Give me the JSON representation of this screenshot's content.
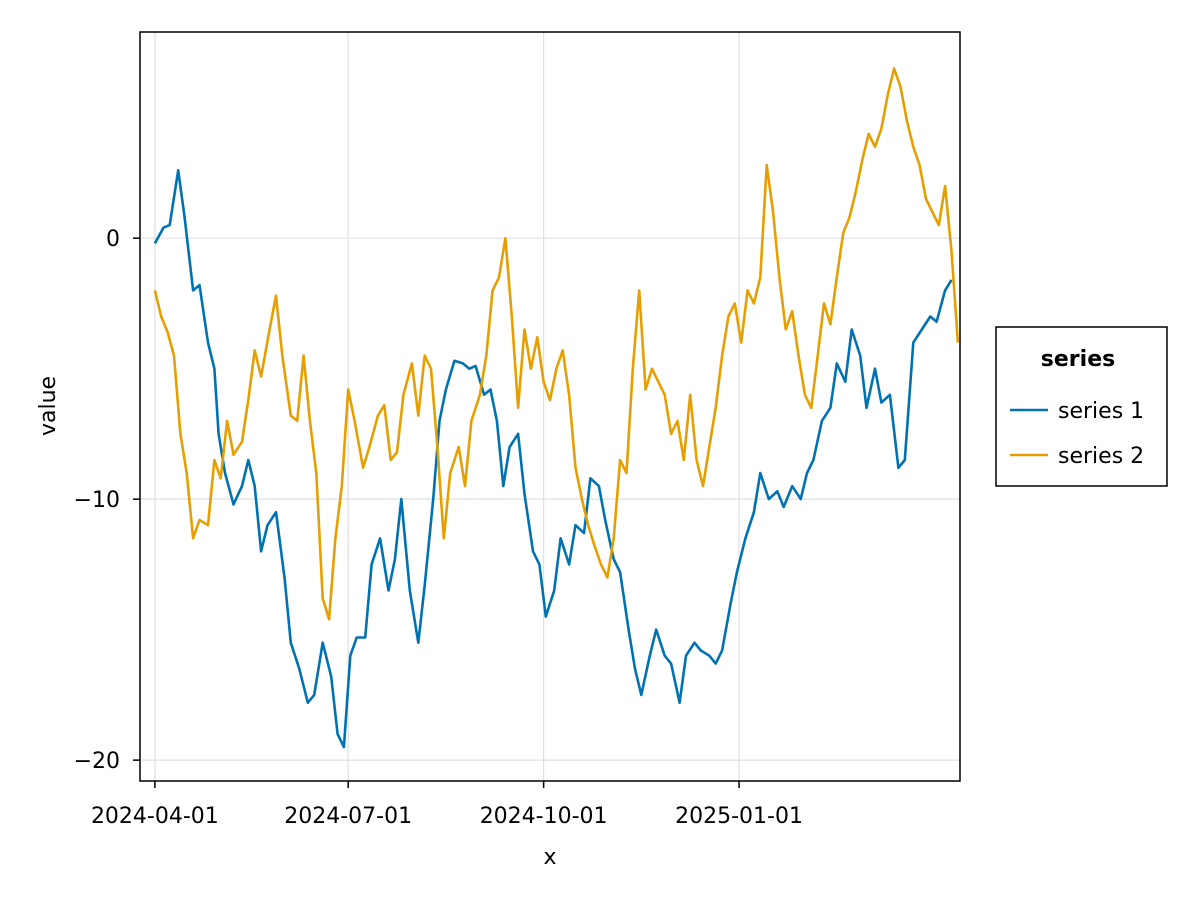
{
  "chart_data": {
    "type": "line",
    "title": "",
    "xlabel": "x",
    "ylabel": "value",
    "x_range": [
      "2024-03-25",
      "2025-04-15"
    ],
    "ylim": [
      -20.8,
      7.9
    ],
    "x_ticks": [
      "2024-04-01",
      "2024-07-01",
      "2024-10-01",
      "2025-01-01"
    ],
    "y_ticks": [
      0,
      -10,
      -20
    ],
    "grid": true,
    "legend": {
      "title": "series",
      "placement": "right"
    },
    "series": [
      {
        "name": "series 1",
        "color": "#0072b2",
        "points": [
          [
            "2024-04-01",
            -0.2
          ],
          [
            "2024-04-05",
            0.4
          ],
          [
            "2024-04-08",
            0.5
          ],
          [
            "2024-04-12",
            2.6
          ],
          [
            "2024-04-15",
            0.8
          ],
          [
            "2024-04-19",
            -2.0
          ],
          [
            "2024-04-22",
            -1.8
          ],
          [
            "2024-04-26",
            -4.0
          ],
          [
            "2024-04-29",
            -5.0
          ],
          [
            "2024-05-01",
            -7.5
          ],
          [
            "2024-05-04",
            -9.0
          ],
          [
            "2024-05-08",
            -10.2
          ],
          [
            "2024-05-12",
            -9.5
          ],
          [
            "2024-05-15",
            -8.5
          ],
          [
            "2024-05-18",
            -9.5
          ],
          [
            "2024-05-21",
            -12.0
          ],
          [
            "2024-05-24",
            -11.0
          ],
          [
            "2024-05-28",
            -10.5
          ],
          [
            "2024-06-01",
            -13.0
          ],
          [
            "2024-06-04",
            -15.5
          ],
          [
            "2024-06-08",
            -16.5
          ],
          [
            "2024-06-12",
            -17.8
          ],
          [
            "2024-06-15",
            -17.5
          ],
          [
            "2024-06-19",
            -15.5
          ],
          [
            "2024-06-23",
            -16.8
          ],
          [
            "2024-06-26",
            -19.0
          ],
          [
            "2024-06-29",
            -19.5
          ],
          [
            "2024-07-02",
            -16.0
          ],
          [
            "2024-07-05",
            -15.3
          ],
          [
            "2024-07-09",
            -15.3
          ],
          [
            "2024-07-12",
            -12.5
          ],
          [
            "2024-07-16",
            -11.5
          ],
          [
            "2024-07-20",
            -13.5
          ],
          [
            "2024-07-23",
            -12.3
          ],
          [
            "2024-07-26",
            -10.0
          ],
          [
            "2024-07-30",
            -13.5
          ],
          [
            "2024-08-03",
            -15.5
          ],
          [
            "2024-08-06",
            -13.3
          ],
          [
            "2024-08-10",
            -10.0
          ],
          [
            "2024-08-13",
            -7.0
          ],
          [
            "2024-08-16",
            -5.8
          ],
          [
            "2024-08-20",
            -4.7
          ],
          [
            "2024-08-24",
            -4.8
          ],
          [
            "2024-08-27",
            -5.0
          ],
          [
            "2024-08-30",
            -4.9
          ],
          [
            "2024-09-03",
            -6.0
          ],
          [
            "2024-09-06",
            -5.8
          ],
          [
            "2024-09-09",
            -7.0
          ],
          [
            "2024-09-12",
            -9.5
          ],
          [
            "2024-09-15",
            -8.0
          ],
          [
            "2024-09-19",
            -7.5
          ],
          [
            "2024-09-22",
            -9.8
          ],
          [
            "2024-09-26",
            -12.0
          ],
          [
            "2024-09-29",
            -12.5
          ],
          [
            "2024-10-02",
            -14.5
          ],
          [
            "2024-10-06",
            -13.5
          ],
          [
            "2024-10-09",
            -11.5
          ],
          [
            "2024-10-13",
            -12.5
          ],
          [
            "2024-10-16",
            -11.0
          ],
          [
            "2024-10-20",
            -11.3
          ],
          [
            "2024-10-23",
            -9.2
          ],
          [
            "2024-10-27",
            -9.5
          ],
          [
            "2024-10-30",
            -10.8
          ],
          [
            "2024-11-03",
            -12.3
          ],
          [
            "2024-11-06",
            -12.8
          ],
          [
            "2024-11-10",
            -15.0
          ],
          [
            "2024-11-13",
            -16.5
          ],
          [
            "2024-11-16",
            -17.5
          ],
          [
            "2024-11-20",
            -16.0
          ],
          [
            "2024-11-23",
            -15.0
          ],
          [
            "2024-11-27",
            -16.0
          ],
          [
            "2024-11-30",
            -16.3
          ],
          [
            "2024-12-04",
            -17.8
          ],
          [
            "2024-12-07",
            -16.0
          ],
          [
            "2024-12-11",
            -15.5
          ],
          [
            "2024-12-14",
            -15.8
          ],
          [
            "2024-12-18",
            -16.0
          ],
          [
            "2024-12-21",
            -16.3
          ],
          [
            "2024-12-24",
            -15.8
          ],
          [
            "2024-12-28",
            -14.0
          ],
          [
            "2024-12-31",
            -12.8
          ],
          [
            "2025-01-04",
            -11.5
          ],
          [
            "2025-01-08",
            -10.5
          ],
          [
            "2025-01-11",
            -9.0
          ],
          [
            "2025-01-15",
            -10.0
          ],
          [
            "2025-01-19",
            -9.7
          ],
          [
            "2025-01-22",
            -10.3
          ],
          [
            "2025-01-26",
            -9.5
          ],
          [
            "2025-01-30",
            -10.0
          ],
          [
            "2025-02-02",
            -9.0
          ],
          [
            "2025-02-05",
            -8.5
          ],
          [
            "2025-02-09",
            -7.0
          ],
          [
            "2025-02-13",
            -6.5
          ],
          [
            "2025-02-16",
            -4.8
          ],
          [
            "2025-02-20",
            -5.5
          ],
          [
            "2025-02-23",
            -3.5
          ],
          [
            "2025-02-27",
            -4.5
          ],
          [
            "2025-03-02",
            -6.5
          ],
          [
            "2025-03-06",
            -5.0
          ],
          [
            "2025-03-09",
            -6.3
          ],
          [
            "2025-03-13",
            -6.0
          ],
          [
            "2025-03-17",
            -8.8
          ],
          [
            "2025-03-20",
            -8.5
          ],
          [
            "2025-03-24",
            -4.0
          ],
          [
            "2025-03-28",
            -3.5
          ],
          [
            "2025-04-01",
            -3.0
          ],
          [
            "2025-04-04",
            -3.2
          ],
          [
            "2025-04-08",
            -2.0
          ],
          [
            "2025-04-11",
            -1.6
          ]
        ]
      },
      {
        "name": "series 2",
        "color": "#e69f00",
        "points": [
          [
            "2024-04-01",
            -2.0
          ],
          [
            "2024-04-04",
            -3.0
          ],
          [
            "2024-04-07",
            -3.6
          ],
          [
            "2024-04-10",
            -4.5
          ],
          [
            "2024-04-13",
            -7.5
          ],
          [
            "2024-04-16",
            -9.0
          ],
          [
            "2024-04-19",
            -11.5
          ],
          [
            "2024-04-22",
            -10.8
          ],
          [
            "2024-04-26",
            -11.0
          ],
          [
            "2024-04-29",
            -8.5
          ],
          [
            "2024-05-02",
            -9.2
          ],
          [
            "2024-05-05",
            -7.0
          ],
          [
            "2024-05-08",
            -8.3
          ],
          [
            "2024-05-12",
            -7.8
          ],
          [
            "2024-05-15",
            -6.2
          ],
          [
            "2024-05-18",
            -4.3
          ],
          [
            "2024-05-21",
            -5.3
          ],
          [
            "2024-05-25",
            -3.5
          ],
          [
            "2024-05-28",
            -2.2
          ],
          [
            "2024-05-31",
            -4.5
          ],
          [
            "2024-06-04",
            -6.8
          ],
          [
            "2024-06-07",
            -7.0
          ],
          [
            "2024-06-10",
            -4.5
          ],
          [
            "2024-06-13",
            -7.0
          ],
          [
            "2024-06-16",
            -9.0
          ],
          [
            "2024-06-19",
            -13.8
          ],
          [
            "2024-06-22",
            -14.6
          ],
          [
            "2024-06-25",
            -11.5
          ],
          [
            "2024-06-28",
            -9.5
          ],
          [
            "2024-07-01",
            -5.8
          ],
          [
            "2024-07-04",
            -7.0
          ],
          [
            "2024-07-08",
            -8.8
          ],
          [
            "2024-07-11",
            -8.0
          ],
          [
            "2024-07-15",
            -6.8
          ],
          [
            "2024-07-18",
            -6.4
          ],
          [
            "2024-07-21",
            -8.5
          ],
          [
            "2024-07-24",
            -8.2
          ],
          [
            "2024-07-27",
            -6.0
          ],
          [
            "2024-07-31",
            -4.8
          ],
          [
            "2024-08-03",
            -6.8
          ],
          [
            "2024-08-06",
            -4.5
          ],
          [
            "2024-08-09",
            -5.0
          ],
          [
            "2024-08-12",
            -8.0
          ],
          [
            "2024-08-15",
            -11.5
          ],
          [
            "2024-08-18",
            -9.0
          ],
          [
            "2024-08-22",
            -8.0
          ],
          [
            "2024-08-25",
            -9.5
          ],
          [
            "2024-08-28",
            -7.0
          ],
          [
            "2024-09-01",
            -6.0
          ],
          [
            "2024-09-04",
            -4.5
          ],
          [
            "2024-09-07",
            -2.0
          ],
          [
            "2024-09-10",
            -1.5
          ],
          [
            "2024-09-13",
            0.0
          ],
          [
            "2024-09-16",
            -3.0
          ],
          [
            "2024-09-19",
            -6.5
          ],
          [
            "2024-09-22",
            -3.5
          ],
          [
            "2024-09-25",
            -5.0
          ],
          [
            "2024-09-28",
            -3.8
          ],
          [
            "2024-10-01",
            -5.5
          ],
          [
            "2024-10-04",
            -6.2
          ],
          [
            "2024-10-07",
            -5.0
          ],
          [
            "2024-10-10",
            -4.3
          ],
          [
            "2024-10-13",
            -6.0
          ],
          [
            "2024-10-16",
            -8.8
          ],
          [
            "2024-10-19",
            -10.0
          ],
          [
            "2024-10-22",
            -11.0
          ],
          [
            "2024-10-25",
            -11.8
          ],
          [
            "2024-10-28",
            -12.5
          ],
          [
            "2024-10-31",
            -13.0
          ],
          [
            "2024-11-03",
            -11.5
          ],
          [
            "2024-11-06",
            -8.5
          ],
          [
            "2024-11-09",
            -9.0
          ],
          [
            "2024-11-12",
            -5.0
          ],
          [
            "2024-11-15",
            -2.0
          ],
          [
            "2024-11-18",
            -5.8
          ],
          [
            "2024-11-21",
            -5.0
          ],
          [
            "2024-11-24",
            -5.5
          ],
          [
            "2024-11-27",
            -6.0
          ],
          [
            "2024-11-30",
            -7.5
          ],
          [
            "2024-12-03",
            -7.0
          ],
          [
            "2024-12-06",
            -8.5
          ],
          [
            "2024-12-09",
            -6.0
          ],
          [
            "2024-12-12",
            -8.5
          ],
          [
            "2024-12-15",
            -9.5
          ],
          [
            "2024-12-18",
            -8.0
          ],
          [
            "2024-12-21",
            -6.5
          ],
          [
            "2024-12-24",
            -4.5
          ],
          [
            "2024-12-27",
            -3.0
          ],
          [
            "2024-12-30",
            -2.5
          ],
          [
            "2025-01-02",
            -4.0
          ],
          [
            "2025-01-05",
            -2.0
          ],
          [
            "2025-01-08",
            -2.5
          ],
          [
            "2025-01-11",
            -1.5
          ],
          [
            "2025-01-14",
            2.8
          ],
          [
            "2025-01-17",
            1.0
          ],
          [
            "2025-01-20",
            -1.5
          ],
          [
            "2025-01-23",
            -3.5
          ],
          [
            "2025-01-26",
            -2.8
          ],
          [
            "2025-01-29",
            -4.5
          ],
          [
            "2025-02-01",
            -6.0
          ],
          [
            "2025-02-04",
            -6.5
          ],
          [
            "2025-02-07",
            -4.5
          ],
          [
            "2025-02-10",
            -2.5
          ],
          [
            "2025-02-13",
            -3.3
          ],
          [
            "2025-02-16",
            -1.5
          ],
          [
            "2025-02-19",
            0.2
          ],
          [
            "2025-02-22",
            0.8
          ],
          [
            "2025-02-25",
            1.8
          ],
          [
            "2025-02-28",
            3.0
          ],
          [
            "2025-03-03",
            4.0
          ],
          [
            "2025-03-06",
            3.5
          ],
          [
            "2025-03-09",
            4.2
          ],
          [
            "2025-03-12",
            5.5
          ],
          [
            "2025-03-15",
            6.5
          ],
          [
            "2025-03-18",
            5.8
          ],
          [
            "2025-03-21",
            4.5
          ],
          [
            "2025-03-24",
            3.5
          ],
          [
            "2025-03-27",
            2.8
          ],
          [
            "2025-03-30",
            1.5
          ],
          [
            "2025-04-02",
            1.0
          ],
          [
            "2025-04-05",
            0.5
          ],
          [
            "2025-04-08",
            2.0
          ],
          [
            "2025-04-11",
            -0.5
          ],
          [
            "2025-04-14",
            -4.0
          ]
        ]
      }
    ]
  }
}
